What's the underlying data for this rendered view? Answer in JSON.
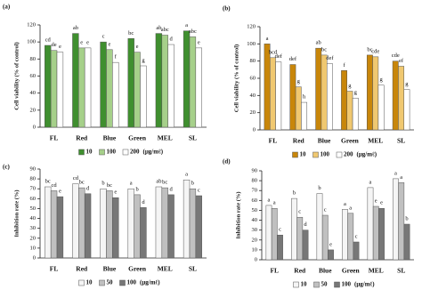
{
  "chart_data": [
    {
      "type": "bar",
      "panel_label": "(a)",
      "y_label": "Cell viability (% of control)",
      "categories": [
        "FL",
        "Red",
        "Blue",
        "Green",
        "MEL",
        "SL"
      ],
      "series": [
        {
          "name": "10",
          "color": "#3f8f2f",
          "values": [
            96,
            110,
            100,
            104,
            110,
            113
          ],
          "letters": [
            "cd",
            "ab",
            "c",
            "bc",
            "ab",
            "a"
          ]
        },
        {
          "name": "100",
          "color": "#a6d08a",
          "values": [
            90,
            93,
            91,
            88,
            108,
            106
          ],
          "letters": [
            "de",
            "e",
            "e",
            "e",
            "abc",
            "abc"
          ]
        },
        {
          "name": "200",
          "color": "#ffffff",
          "values": [
            88,
            93,
            76,
            72,
            97,
            93
          ],
          "letters": [
            "e",
            "e",
            "f",
            "g",
            "d",
            "e"
          ]
        }
      ],
      "legend_unit": "(μg/mℓ)",
      "ylim": [
        0,
        120
      ],
      "yticks": [
        0,
        20,
        40,
        60,
        80,
        100,
        120
      ]
    },
    {
      "type": "bar",
      "panel_label": "(b)",
      "y_label": "Cell viability (% of control)",
      "categories": [
        "FL",
        "Red",
        "Blue",
        "Green",
        "MEL",
        "SL"
      ],
      "series": [
        {
          "name": "10",
          "color": "#c8860a",
          "values": [
            100,
            76,
            95,
            69,
            87,
            80
          ],
          "letters": [
            "a",
            "def",
            "ab",
            "f",
            "bc",
            "cde"
          ]
        },
        {
          "name": "100",
          "color": "#f0c870",
          "values": [
            84,
            50,
            87,
            45,
            85,
            74
          ],
          "letters": [
            "bcd",
            "g",
            "bc",
            "g",
            "cde",
            "ef"
          ]
        },
        {
          "name": "200",
          "color": "#ffffff",
          "values": [
            79,
            32,
            77,
            37,
            52,
            47
          ],
          "letters": [
            "def",
            "h",
            "def",
            "g",
            "g",
            "g"
          ]
        }
      ],
      "legend_unit": "(μg/mℓ)",
      "ylim": [
        0,
        120
      ],
      "yticks": [
        0,
        20,
        40,
        60,
        80,
        100,
        120
      ]
    },
    {
      "type": "bar",
      "panel_label": "(c)",
      "y_label": "Inhibition rate (%)",
      "categories": [
        "FL",
        "Red",
        "Blue",
        "Green",
        "MEL",
        "SL"
      ],
      "series": [
        {
          "name": "10",
          "color": "#f5f5f5",
          "values": [
            72,
            75,
            70,
            70,
            72,
            79
          ],
          "letters": [
            "bc",
            "cd",
            "b",
            "a",
            "ab",
            "a"
          ]
        },
        {
          "name": "50",
          "color": "#c0c0c0",
          "values": [
            68,
            71,
            68,
            64,
            71,
            70
          ],
          "letters": [
            "cd",
            "bc",
            "bc",
            "b",
            "bc",
            "b"
          ]
        },
        {
          "name": "100",
          "color": "#777777",
          "values": [
            62,
            65,
            61,
            51,
            64,
            63
          ],
          "letters": [
            "e",
            "d",
            "e",
            "d",
            "d",
            "c"
          ]
        }
      ],
      "legend_unit": "(μg/mℓ)",
      "ylim": [
        0,
        90
      ],
      "yticks": [
        0,
        10,
        20,
        30,
        40,
        50,
        60,
        70,
        80,
        90
      ]
    },
    {
      "type": "bar",
      "panel_label": "(d)",
      "y_label": "Inhibition rate (%)",
      "categories": [
        "FL",
        "Red",
        "Blue",
        "Green",
        "MEL",
        "SL"
      ],
      "series": [
        {
          "name": "10",
          "color": "#f5f5f5",
          "values": [
            55,
            62,
            67,
            51,
            73,
            82
          ],
          "letters": [
            "a",
            "b",
            "b",
            "a",
            "a",
            "a"
          ]
        },
        {
          "name": "50",
          "color": "#c0c0c0",
          "values": [
            52,
            43,
            45,
            47,
            54,
            78
          ],
          "letters": [
            "a",
            "c",
            "c",
            "a",
            "e",
            "a"
          ]
        },
        {
          "name": "100",
          "color": "#777777",
          "values": [
            25,
            30,
            10,
            18,
            52,
            36
          ],
          "letters": [
            "c",
            "d",
            "e",
            "c",
            "e",
            "b"
          ]
        }
      ],
      "legend_unit": "(μg/mℓ)",
      "ylim": [
        0,
        90
      ],
      "yticks": [
        0,
        10,
        20,
        30,
        40,
        50,
        60,
        70,
        80,
        90
      ]
    }
  ]
}
